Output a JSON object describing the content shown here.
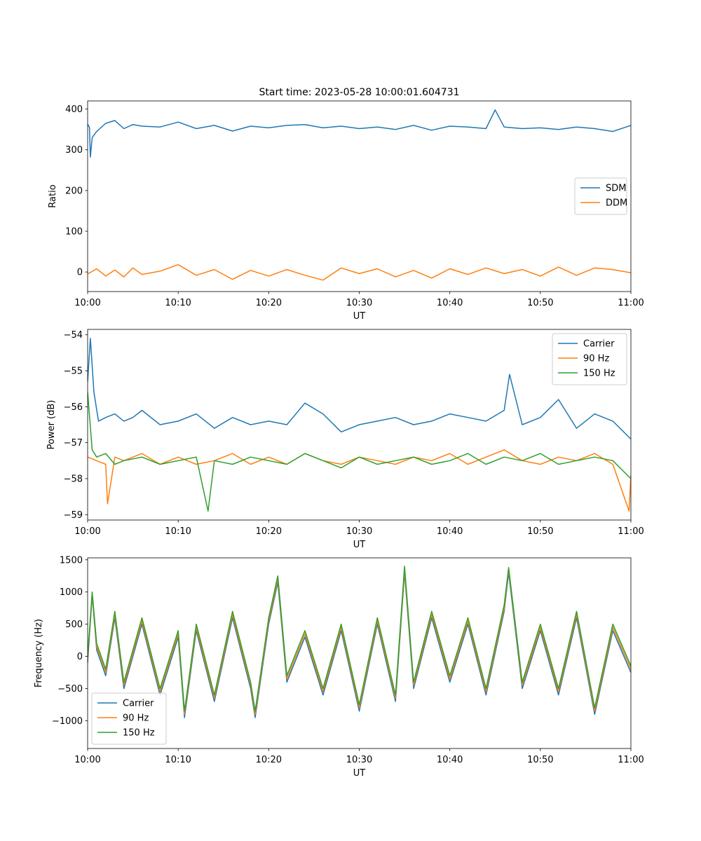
{
  "figure": {
    "title": "Start time: 2023-05-28 10:00:01.604731"
  },
  "colors": {
    "blue": "#1f77b4",
    "orange": "#ff7f0e",
    "green": "#2ca02c"
  },
  "chart_data": [
    {
      "type": "line",
      "title": "Start time: 2023-05-28 10:00:01.604731",
      "xlabel": "UT",
      "ylabel": "Ratio",
      "x_unit": "minutes after 10:00",
      "xlim": [
        0,
        60
      ],
      "ylim": [
        -48,
        420
      ],
      "xticks": [
        {
          "value": 0,
          "label": "10:00"
        },
        {
          "value": 10,
          "label": "10:10"
        },
        {
          "value": 20,
          "label": "10:20"
        },
        {
          "value": 30,
          "label": "10:30"
        },
        {
          "value": 40,
          "label": "10:40"
        },
        {
          "value": 50,
          "label": "10:50"
        },
        {
          "value": 60,
          "label": "11:00"
        }
      ],
      "yticks": [
        {
          "value": 0,
          "label": "0"
        },
        {
          "value": 100,
          "label": "100"
        },
        {
          "value": 200,
          "label": "200"
        },
        {
          "value": 300,
          "label": "300"
        },
        {
          "value": 400,
          "label": "400"
        }
      ],
      "legend": "center-right",
      "grid": false,
      "series": [
        {
          "name": "SDM",
          "color": "#1f77b4",
          "x": [
            0,
            0.2,
            0.3,
            0.5,
            1,
            2,
            3,
            4,
            5,
            6,
            8,
            10,
            12,
            14,
            16,
            18,
            20,
            22,
            24,
            26,
            28,
            30,
            32,
            34,
            36,
            38,
            40,
            42,
            44,
            45,
            46,
            48,
            50,
            52,
            54,
            56,
            58,
            60
          ],
          "y": [
            363,
            355,
            282,
            330,
            345,
            365,
            372,
            352,
            362,
            358,
            356,
            368,
            352,
            360,
            346,
            358,
            354,
            360,
            362,
            354,
            358,
            352,
            356,
            350,
            360,
            348,
            358,
            356,
            352,
            398,
            356,
            352,
            354,
            350,
            356,
            352,
            345,
            360
          ]
        },
        {
          "name": "DDM",
          "color": "#ff7f0e",
          "x": [
            0,
            1,
            2,
            3,
            4,
            5,
            6,
            8,
            10,
            12,
            14,
            16,
            18,
            20,
            22,
            24,
            26,
            28,
            30,
            32,
            34,
            36,
            38,
            40,
            42,
            44,
            46,
            48,
            50,
            52,
            54,
            56,
            58,
            60
          ],
          "y": [
            -5,
            8,
            -10,
            5,
            -12,
            10,
            -6,
            2,
            18,
            -8,
            6,
            -18,
            4,
            -10,
            6,
            -8,
            -20,
            10,
            -4,
            8,
            -12,
            4,
            -15,
            8,
            -6,
            10,
            -4,
            6,
            -10,
            12,
            -8,
            10,
            6,
            -2
          ]
        }
      ]
    },
    {
      "type": "line",
      "xlabel": "UT",
      "ylabel": "Power (dB)",
      "x_unit": "minutes after 10:00",
      "xlim": [
        0,
        60
      ],
      "ylim": [
        -59.15,
        -53.85
      ],
      "xticks": [
        {
          "value": 0,
          "label": "10:00"
        },
        {
          "value": 10,
          "label": "10:10"
        },
        {
          "value": 20,
          "label": "10:20"
        },
        {
          "value": 30,
          "label": "10:30"
        },
        {
          "value": 40,
          "label": "10:40"
        },
        {
          "value": 50,
          "label": "10:50"
        },
        {
          "value": 60,
          "label": "11:00"
        }
      ],
      "yticks": [
        {
          "value": -54,
          "label": "−54"
        },
        {
          "value": -55,
          "label": "−55"
        },
        {
          "value": -56,
          "label": "−56"
        },
        {
          "value": -57,
          "label": "−57"
        },
        {
          "value": -58,
          "label": "−58"
        },
        {
          "value": -59,
          "label": "−59"
        }
      ],
      "legend": "top-right",
      "grid": false,
      "series": [
        {
          "name": "Carrier",
          "color": "#1f77b4",
          "x": [
            0,
            0.3,
            0.7,
            1.2,
            2,
            3,
            4,
            5,
            6,
            8,
            10,
            12,
            14,
            16,
            18,
            20,
            22,
            24,
            26,
            28,
            30,
            32,
            34,
            36,
            38,
            40,
            42,
            44,
            46,
            46.6,
            48,
            50,
            52,
            54,
            56,
            58,
            60
          ],
          "y": [
            -55.3,
            -54.1,
            -55.6,
            -56.4,
            -56.3,
            -56.2,
            -56.4,
            -56.3,
            -56.1,
            -56.5,
            -56.4,
            -56.2,
            -56.6,
            -56.3,
            -56.5,
            -56.4,
            -56.5,
            -55.9,
            -56.2,
            -56.7,
            -56.5,
            -56.4,
            -56.3,
            -56.5,
            -56.4,
            -56.2,
            -56.3,
            -56.4,
            -56.1,
            -55.1,
            -56.5,
            -56.3,
            -55.8,
            -56.6,
            -56.2,
            -56.4,
            -56.9
          ]
        },
        {
          "name": "90 Hz",
          "color": "#ff7f0e",
          "x": [
            0,
            1,
            2,
            2.2,
            3,
            4,
            6,
            8,
            10,
            12,
            14,
            16,
            18,
            20,
            22,
            24,
            26,
            28,
            30,
            32,
            34,
            36,
            38,
            40,
            42,
            44,
            46,
            48,
            50,
            52,
            54,
            56,
            58,
            59.8,
            60
          ],
          "y": [
            -57.4,
            -57.5,
            -57.6,
            -58.7,
            -57.4,
            -57.5,
            -57.3,
            -57.6,
            -57.4,
            -57.6,
            -57.5,
            -57.3,
            -57.6,
            -57.4,
            -57.6,
            -57.3,
            -57.5,
            -57.6,
            -57.4,
            -57.5,
            -57.6,
            -57.4,
            -57.5,
            -57.3,
            -57.6,
            -57.4,
            -57.2,
            -57.5,
            -57.6,
            -57.4,
            -57.5,
            -57.3,
            -57.6,
            -58.9,
            -57.9
          ]
        },
        {
          "name": "150 Hz",
          "color": "#2ca02c",
          "x": [
            0,
            0.5,
            1,
            2,
            3,
            4,
            6,
            8,
            10,
            12,
            13.3,
            14,
            16,
            18,
            20,
            22,
            24,
            26,
            28,
            30,
            32,
            34,
            36,
            38,
            40,
            42,
            44,
            46,
            48,
            50,
            52,
            54,
            56,
            58,
            60
          ],
          "y": [
            -55.6,
            -57.2,
            -57.4,
            -57.3,
            -57.6,
            -57.5,
            -57.4,
            -57.6,
            -57.5,
            -57.4,
            -58.9,
            -57.5,
            -57.6,
            -57.4,
            -57.5,
            -57.6,
            -57.3,
            -57.5,
            -57.7,
            -57.4,
            -57.6,
            -57.5,
            -57.4,
            -57.6,
            -57.5,
            -57.3,
            -57.6,
            -57.4,
            -57.5,
            -57.3,
            -57.6,
            -57.5,
            -57.4,
            -57.5,
            -58.0
          ]
        }
      ]
    },
    {
      "type": "line",
      "xlabel": "UT",
      "ylabel": "Frequency (Hz)",
      "x_unit": "minutes after 10:00",
      "xlim": [
        0,
        60
      ],
      "ylim": [
        -1430,
        1530
      ],
      "xticks": [
        {
          "value": 0,
          "label": "10:00"
        },
        {
          "value": 10,
          "label": "10:10"
        },
        {
          "value": 20,
          "label": "10:20"
        },
        {
          "value": 30,
          "label": "10:30"
        },
        {
          "value": 40,
          "label": "10:40"
        },
        {
          "value": 50,
          "label": "10:50"
        },
        {
          "value": 60,
          "label": "11:00"
        }
      ],
      "yticks": [
        {
          "value": 1500,
          "label": "1500"
        },
        {
          "value": 1000,
          "label": "1000"
        },
        {
          "value": 500,
          "label": "500"
        },
        {
          "value": 0,
          "label": "0"
        },
        {
          "value": -500,
          "label": "−500"
        },
        {
          "value": -1000,
          "label": "−1000"
        }
      ],
      "legend": "bottom-left",
      "grid": false,
      "series": [
        {
          "name": "Carrier",
          "color": "#1f77b4",
          "x": [
            0,
            0.5,
            1,
            2,
            3,
            4,
            6,
            8,
            10,
            10.7,
            12,
            14,
            16,
            18,
            18.5,
            20,
            21,
            22,
            24,
            26,
            28,
            30,
            32,
            34,
            35,
            36,
            38,
            40,
            42,
            44,
            46,
            46.5,
            48,
            50,
            52,
            54,
            56,
            58,
            60
          ],
          "y": [
            -100,
            950,
            100,
            -300,
            600,
            -500,
            500,
            -600,
            300,
            -950,
            400,
            -700,
            600,
            -500,
            -950,
            500,
            1150,
            -400,
            300,
            -600,
            400,
            -850,
            500,
            -700,
            1300,
            -500,
            600,
            -400,
            500,
            -600,
            700,
            1300,
            -500,
            400,
            -600,
            600,
            -900,
            400,
            -250
          ]
        },
        {
          "name": "90 Hz",
          "color": "#ff7f0e",
          "x": [
            0,
            0.5,
            1,
            2,
            3,
            4,
            6,
            8,
            10,
            10.7,
            12,
            14,
            16,
            18,
            18.5,
            20,
            21,
            22,
            24,
            26,
            28,
            30,
            32,
            34,
            35,
            36,
            38,
            40,
            42,
            44,
            46,
            46.5,
            48,
            50,
            52,
            54,
            56,
            58,
            60
          ],
          "y": [
            -50,
            980,
            150,
            -250,
            650,
            -450,
            550,
            -550,
            350,
            -900,
            450,
            -650,
            650,
            -450,
            -900,
            550,
            1200,
            -350,
            350,
            -550,
            450,
            -800,
            550,
            -650,
            1350,
            -450,
            650,
            -350,
            550,
            -550,
            750,
            1350,
            -450,
            450,
            -550,
            650,
            -850,
            450,
            -200
          ]
        },
        {
          "name": "150 Hz",
          "color": "#2ca02c",
          "x": [
            0,
            0.5,
            1,
            2,
            3,
            4,
            6,
            8,
            10,
            10.7,
            12,
            14,
            16,
            18,
            18.5,
            20,
            21,
            22,
            24,
            26,
            28,
            30,
            32,
            34,
            35,
            36,
            38,
            40,
            42,
            44,
            46,
            46.5,
            48,
            50,
            52,
            54,
            56,
            58,
            60
          ],
          "y": [
            0,
            1000,
            200,
            -200,
            700,
            -400,
            600,
            -500,
            400,
            -850,
            500,
            -600,
            700,
            -400,
            -850,
            600,
            1250,
            -300,
            400,
            -500,
            500,
            -750,
            600,
            -600,
            1400,
            -400,
            700,
            -300,
            600,
            -500,
            800,
            1380,
            -400,
            500,
            -500,
            700,
            -800,
            500,
            -150
          ]
        }
      ]
    }
  ]
}
